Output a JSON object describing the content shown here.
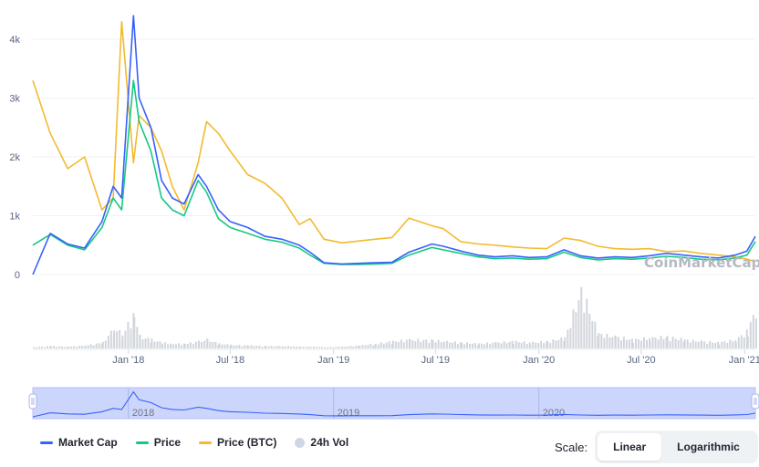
{
  "chart_data": {
    "type": "line",
    "y_axis": {
      "ticks": [
        "4k",
        "3k",
        "2k",
        "1k",
        "0"
      ],
      "values": [
        4000,
        3000,
        2000,
        1000,
        0
      ],
      "ylim": [
        0,
        4300
      ]
    },
    "x_axis": {
      "ticks": [
        "Jan '18",
        "Jul '18",
        "Jan '19",
        "Jul '19",
        "Jan '20",
        "Jul '20",
        "Jan '21"
      ],
      "tick_dates": [
        "2018-01-01",
        "2018-07-01",
        "2019-01-01",
        "2019-07-01",
        "2020-01-01",
        "2020-07-01",
        "2021-01-01"
      ],
      "range": [
        "2017-07-15",
        "2021-01-20"
      ]
    },
    "x": [
      "2017-07-15",
      "2017-08-15",
      "2017-09-15",
      "2017-10-15",
      "2017-11-15",
      "2017-12-05",
      "2017-12-20",
      "2018-01-10",
      "2018-01-20",
      "2018-02-10",
      "2018-03-01",
      "2018-03-20",
      "2018-04-10",
      "2018-05-05",
      "2018-05-20",
      "2018-06-10",
      "2018-07-01",
      "2018-08-01",
      "2018-09-01",
      "2018-10-01",
      "2018-11-01",
      "2018-11-20",
      "2018-12-15",
      "2019-01-15",
      "2019-02-15",
      "2019-03-15",
      "2019-04-15",
      "2019-05-15",
      "2019-06-25",
      "2019-07-15",
      "2019-08-15",
      "2019-09-15",
      "2019-10-15",
      "2019-11-15",
      "2019-12-15",
      "2020-01-15",
      "2020-02-15",
      "2020-03-15",
      "2020-04-15",
      "2020-05-15",
      "2020-06-15",
      "2020-07-15",
      "2020-08-15",
      "2020-09-15",
      "2020-10-15",
      "2020-11-15",
      "2020-12-15",
      "2021-01-05",
      "2021-01-20"
    ],
    "series": [
      {
        "name": "Market Cap",
        "color": "#3861fb",
        "axis": "left",
        "values": [
          0,
          700,
          520,
          450,
          900,
          1500,
          1300,
          4400,
          3000,
          2500,
          1600,
          1300,
          1200,
          1700,
          1500,
          1100,
          900,
          800,
          650,
          600,
          500,
          380,
          200,
          180,
          190,
          200,
          210,
          380,
          520,
          480,
          400,
          330,
          300,
          320,
          290,
          300,
          420,
          320,
          280,
          300,
          290,
          320,
          360,
          330,
          300,
          280,
          330,
          400,
          650
        ]
      },
      {
        "name": "Price",
        "color": "#16c784",
        "axis": "left",
        "values": [
          500,
          680,
          500,
          420,
          800,
          1300,
          1100,
          3300,
          2600,
          2100,
          1300,
          1100,
          1000,
          1600,
          1400,
          950,
          800,
          700,
          600,
          550,
          450,
          330,
          190,
          170,
          170,
          180,
          190,
          330,
          460,
          420,
          360,
          300,
          270,
          280,
          260,
          270,
          380,
          290,
          250,
          270,
          260,
          280,
          310,
          290,
          260,
          250,
          280,
          330,
          560
        ]
      },
      {
        "name": "Price (BTC)",
        "color": "#f3ba2f",
        "axis": "left",
        "values": [
          3300,
          2400,
          1800,
          2000,
          1100,
          1300,
          4300,
          1900,
          2700,
          2500,
          2100,
          1500,
          1100,
          1900,
          2600,
          2400,
          2100,
          1700,
          1550,
          1300,
          850,
          950,
          600,
          540,
          570,
          600,
          630,
          960,
          830,
          780,
          560,
          520,
          500,
          470,
          450,
          440,
          620,
          580,
          480,
          440,
          430,
          440,
          390,
          400,
          360,
          330,
          300,
          260,
          220
        ]
      },
      {
        "name": "24h Vol",
        "color": "#d1d6dc",
        "axis": "volume",
        "values": [
          2,
          4,
          3,
          5,
          10,
          35,
          25,
          60,
          20,
          15,
          10,
          8,
          8,
          12,
          15,
          8,
          6,
          5,
          4,
          4,
          3,
          3,
          2,
          3,
          5,
          8,
          12,
          15,
          14,
          12,
          10,
          8,
          10,
          12,
          10,
          12,
          18,
          100,
          25,
          20,
          15,
          18,
          20,
          15,
          12,
          10,
          15,
          30,
          70
        ]
      }
    ],
    "watermark": "CoinMarketCap",
    "navigator": {
      "labels": [
        "2018",
        "2019",
        "2020"
      ],
      "label_dates": [
        "2018-01-01",
        "2019-01-01",
        "2020-01-01"
      ]
    },
    "legend_position": "bottom-left",
    "grid": true
  },
  "legend": [
    {
      "label": "Market Cap",
      "color": "#3861fb",
      "kind": "line"
    },
    {
      "label": "Price",
      "color": "#16c784",
      "kind": "line"
    },
    {
      "label": "Price (BTC)",
      "color": "#f3ba2f",
      "kind": "line"
    },
    {
      "label": "24h Vol",
      "color": "#cfd6e4",
      "kind": "dot"
    }
  ],
  "scale": {
    "label": "Scale:",
    "options": [
      "Linear",
      "Logarithmic"
    ],
    "selected": "Linear"
  }
}
